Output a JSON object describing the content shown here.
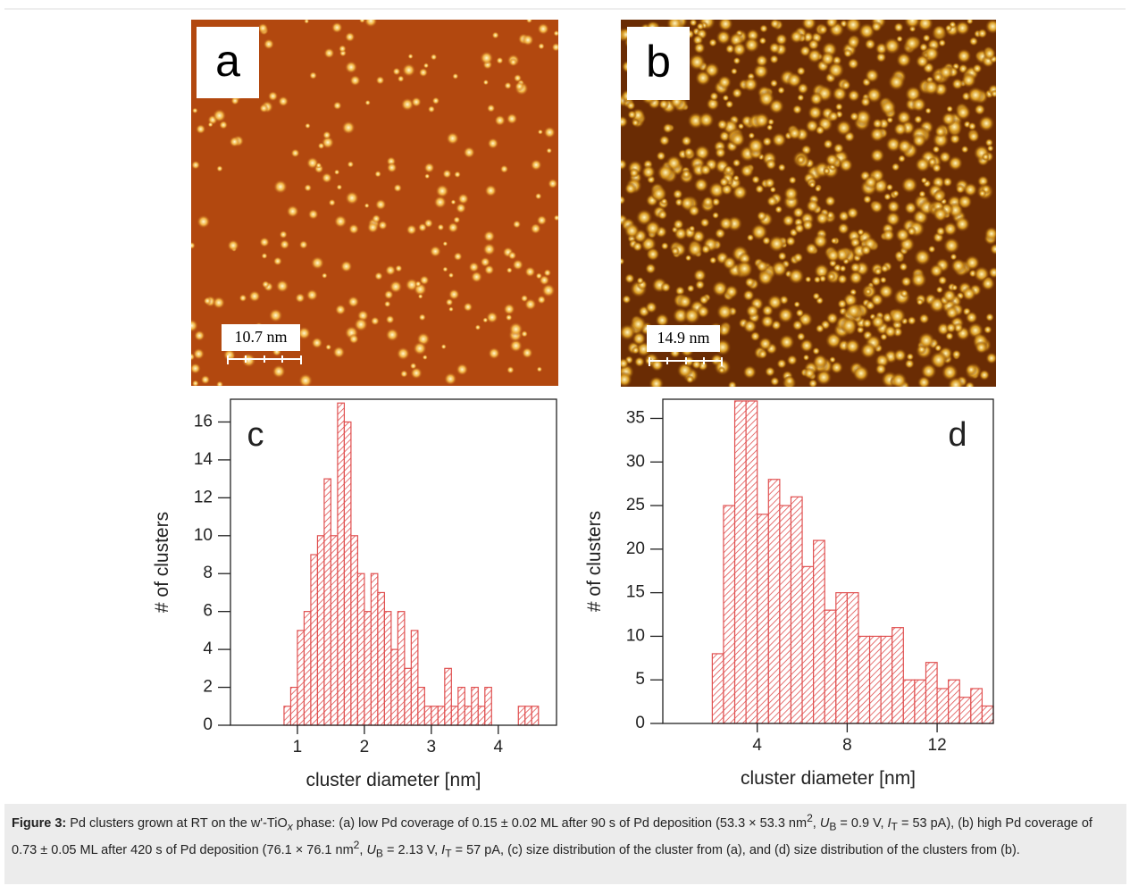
{
  "images": [
    {
      "panel_label": "a",
      "scale_label": "10.7 nm"
    },
    {
      "panel_label": "b",
      "scale_label": "14.9 nm"
    }
  ],
  "chart_data": [
    {
      "type": "histogram",
      "panel_label": "c",
      "xlabel": "cluster diameter [nm]",
      "ylabel": "# of clusters",
      "color": "#e05050",
      "bins": [
        0,
        0.1,
        0.2,
        0.3,
        0.4,
        0.5,
        0.6,
        0.7,
        0.8,
        0.9,
        1,
        1.1,
        1.2,
        1.3,
        1.4,
        1.5,
        1.6,
        1.7,
        1.8,
        1.9,
        2,
        2.1,
        2.2,
        2.3,
        2.4,
        2.5,
        2.6,
        2.7,
        2.8,
        2.9,
        3,
        3.1,
        3.2,
        3.3,
        3.4,
        3.5,
        3.6,
        3.7,
        3.8,
        3.9,
        4,
        4.1,
        4.2,
        4.3,
        4.4,
        4.5,
        4.6,
        4.7,
        4.8
      ],
      "values": [
        0,
        0,
        0,
        0,
        0,
        0,
        0,
        0,
        1,
        2,
        5,
        6,
        9,
        10,
        13,
        10,
        17,
        16,
        10,
        8,
        6,
        8,
        7,
        6,
        4,
        6,
        3,
        5,
        2,
        1,
        1,
        1,
        3,
        1,
        2,
        1,
        2,
        1,
        2,
        0,
        0,
        0,
        0,
        1,
        1,
        1,
        0,
        0
      ],
      "xlim": [
        0,
        4.87
      ],
      "ylim": [
        0,
        17.2
      ],
      "xticks": [
        1,
        2,
        3,
        4
      ],
      "yticks": [
        0,
        2,
        4,
        6,
        8,
        10,
        12,
        14,
        16
      ]
    },
    {
      "type": "histogram",
      "panel_label": "d",
      "xlabel": "cluster diameter [nm]",
      "ylabel": "# of clusters",
      "color": "#e05050",
      "bins": [
        0,
        0.5,
        1,
        1.5,
        2,
        2.5,
        3,
        3.5,
        4,
        4.5,
        5,
        5.5,
        6,
        6.5,
        7,
        7.5,
        8,
        8.5,
        9,
        9.5,
        10,
        10.5,
        11,
        11.5,
        12,
        12.5,
        13,
        13.5,
        14,
        14.5
      ],
      "values": [
        0,
        0,
        0,
        0,
        8,
        25,
        37,
        37,
        24,
        28,
        25,
        26,
        18,
        21,
        13,
        15,
        15,
        10,
        10,
        10,
        11,
        5,
        5,
        7,
        4,
        5,
        3,
        4,
        2
      ],
      "xlim": [
        -0.2,
        14.5
      ],
      "ylim": [
        0,
        37.2
      ],
      "xticks": [
        4,
        8,
        12
      ],
      "yticks": [
        0,
        5,
        10,
        15,
        20,
        25,
        30,
        35
      ]
    }
  ],
  "caption": {
    "label": "Figure 3:",
    "runs": [
      "Pd clusters grown at RT on the w'-TiO",
      "x",
      " phase: (a) low Pd coverage of 0.15 ± 0.02 ML after 90 s of Pd deposition (53.3 × 53.3 nm",
      "2",
      ", ",
      "U",
      "B",
      " = 0.9 V, ",
      "I",
      "T",
      " = 53 pA), (b) high Pd coverage of 0.73 ± 0.05 ML after 420 s of Pd deposition (76.1 × 76.1 nm",
      "2",
      ", ",
      "U",
      "B",
      " = 2.13 V, ",
      "I",
      "T",
      " = 57 pA, (c) size distribution of the cluster from (a), and (d) size distribution of the clusters from (b)."
    ]
  }
}
